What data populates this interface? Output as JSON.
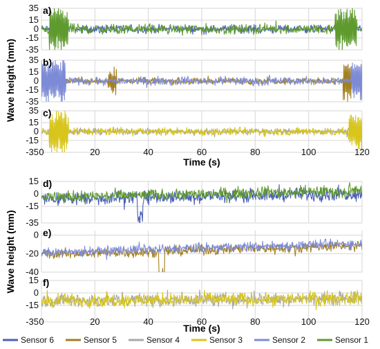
{
  "chart_data": {
    "type": "line",
    "x_range": [
      0,
      120
    ],
    "grid": true,
    "legend_placement": "bottom",
    "colors": {
      "Sensor 6": "#4a5fb4",
      "Sensor 5": "#a27f1e",
      "Sensor 4": "#a8a8a8",
      "Sensor 3": "#d7c51c",
      "Sensor 2": "#7d8bd6",
      "Sensor 1": "#5e9a2d"
    },
    "legend": [
      "Sensor 6",
      "Sensor 5",
      "Sensor 4",
      "Sensor 3",
      "Sensor 2",
      "Sensor 1"
    ],
    "groups": [
      {
        "ylabel": "Wave height (mm)",
        "xlabel": "Time (s)",
        "x_ticks": [
          "0",
          "20",
          "40",
          "60",
          "80",
          "100",
          "120"
        ],
        "panels": [
          {
            "label": "a)",
            "ylim": [
              -35,
              35
            ],
            "y_ticks": [
              "35",
              "15",
              "0",
              "-15",
              "-35"
            ],
            "y_tick_values": [
              35,
              15,
              0,
              -15,
              -35
            ],
            "series": [
              {
                "name": "Sensor 6",
                "amplitude": 5,
                "mean": 0,
                "drift": 0,
                "bursts": []
              },
              {
                "name": "Sensor 1",
                "amplitude": 6,
                "mean": 0,
                "drift": 0,
                "bursts": [
                  {
                    "start": 3,
                    "end": 10,
                    "peak": 35
                  },
                  {
                    "start": 110,
                    "end": 118,
                    "peak": 32
                  }
                ]
              }
            ]
          },
          {
            "label": "b)",
            "ylim": [
              -35,
              35
            ],
            "y_ticks": [
              "35",
              "15",
              "0",
              "-15",
              "-35"
            ],
            "y_tick_values": [
              35,
              15,
              0,
              -15,
              -35
            ],
            "series": [
              {
                "name": "Sensor 5",
                "amplitude": 4,
                "mean": 0,
                "drift": 0,
                "bursts": [
                  {
                    "start": 25,
                    "end": 28,
                    "peak": 20
                  },
                  {
                    "start": 113,
                    "end": 116,
                    "peak": 35
                  }
                ]
              },
              {
                "name": "Sensor 2",
                "amplitude": 5,
                "mean": 0,
                "drift": 0,
                "bursts": [
                  {
                    "start": 0,
                    "end": 9,
                    "peak": 35
                  },
                  {
                    "start": 116,
                    "end": 120,
                    "peak": 35
                  }
                ]
              }
            ]
          },
          {
            "label": "c)",
            "ylim": [
              -35,
              35
            ],
            "y_ticks": [
              "35",
              "15",
              "0",
              "-15",
              "-35"
            ],
            "y_tick_values": [
              35,
              15,
              0,
              -15,
              -35
            ],
            "series": [
              {
                "name": "Sensor 4",
                "amplitude": 4,
                "mean": 0,
                "drift": 0,
                "bursts": []
              },
              {
                "name": "Sensor 3",
                "amplitude": 5,
                "mean": 0,
                "drift": 0,
                "bursts": [
                  {
                    "start": 3,
                    "end": 10,
                    "peak": 35
                  },
                  {
                    "start": 115,
                    "end": 120,
                    "peak": 30
                  }
                ]
              }
            ]
          }
        ]
      },
      {
        "ylabel": "Wave height (mm)",
        "xlabel": "Time (s)",
        "x_ticks": [
          "0",
          "20",
          "40",
          "60",
          "80",
          "100",
          "120"
        ],
        "panels": [
          {
            "label": "d)",
            "ylim": [
              -35,
              15
            ],
            "y_ticks": [
              "15",
              "0",
              "-15",
              "-35"
            ],
            "y_tick_values": [
              15,
              0,
              -15,
              -35
            ],
            "series": [
              {
                "name": "Sensor 6",
                "amplitude": 6,
                "mean": -3,
                "drift": 7,
                "bursts": [
                  {
                    "start": 36,
                    "end": 38,
                    "peak": -30
                  }
                ]
              },
              {
                "name": "Sensor 1",
                "amplitude": 5,
                "mean": 0,
                "drift": 8,
                "bursts": []
              }
            ]
          },
          {
            "label": "e)",
            "ylim": [
              -40,
              5
            ],
            "y_ticks": [
              "0",
              "-20",
              "-40"
            ],
            "y_tick_values": [
              0,
              -20,
              -40
            ],
            "series": [
              {
                "name": "Sensor 5",
                "amplitude": 4,
                "mean": -16,
                "drift": 9,
                "bursts": [
                  {
                    "start": 44,
                    "end": 46,
                    "peak": -36
                  }
                ]
              },
              {
                "name": "Sensor 2",
                "amplitude": 4,
                "mean": -14,
                "drift": 10,
                "bursts": []
              }
            ]
          },
          {
            "label": "f)",
            "ylim": [
              -35,
              15
            ],
            "y_ticks": [
              "15",
              "0",
              "-15",
              "-35"
            ],
            "y_tick_values": [
              15,
              0,
              -15,
              -35
            ],
            "series": [
              {
                "name": "Sensor 4",
                "amplitude": 6,
                "mean": -8,
                "drift": 3,
                "bursts": []
              },
              {
                "name": "Sensor 3",
                "amplitude": 6,
                "mean": -8,
                "drift": 3,
                "bursts": []
              }
            ]
          }
        ]
      }
    ]
  }
}
